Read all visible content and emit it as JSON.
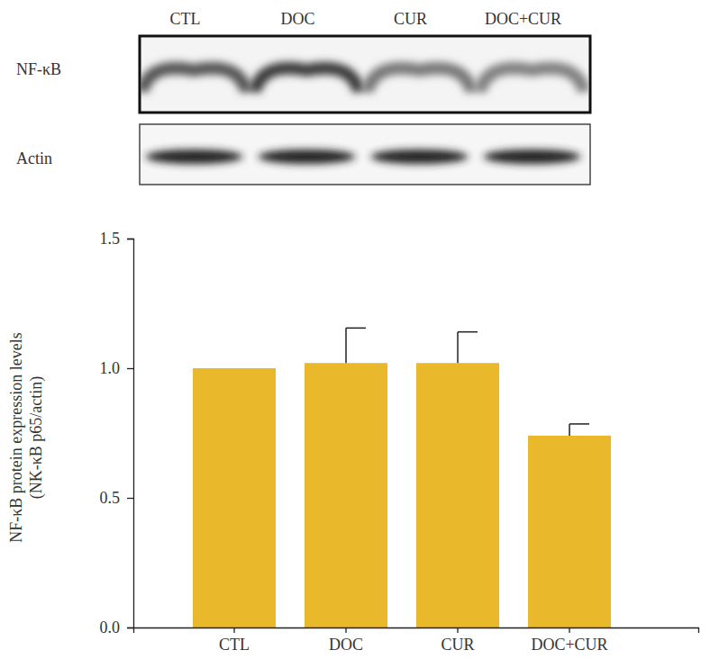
{
  "chart_data": {
    "type": "bar",
    "categories": [
      "CTL",
      "DOC",
      "CUR",
      "DOC+CUR"
    ],
    "values": [
      1.0,
      1.02,
      1.02,
      0.74
    ],
    "errors": [
      null,
      0.135,
      0.12,
      0.045
    ],
    "color": "#e9b82b",
    "y_label": [
      "NF-κB protein expression levels",
      "(NK-κB p65/actin)"
    ],
    "ylim": [
      0,
      1.5
    ],
    "yticks": [
      {
        "value": 0,
        "label": "0.0"
      },
      {
        "value": 0.5,
        "label": "0.5"
      },
      {
        "value": 1,
        "label": "1.0"
      },
      {
        "value": 1.5,
        "label": "1.5"
      }
    ],
    "grid": false
  },
  "blot": {
    "lanes": [
      "CTL",
      "DOC",
      "CUR",
      "DOC+CUR"
    ],
    "rows": [
      "NF-κB",
      "Actin"
    ]
  }
}
